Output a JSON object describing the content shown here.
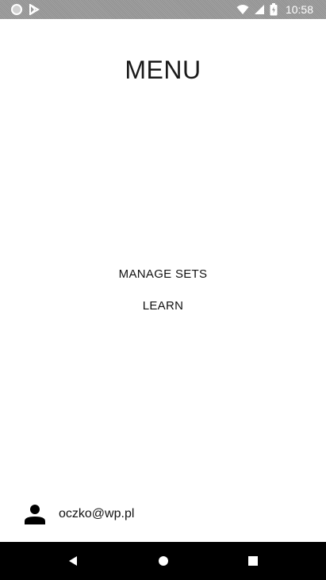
{
  "status_bar": {
    "time": "10:58",
    "icons": [
      "notification-dot-icon",
      "play-store-icon",
      "wifi-icon",
      "signal-icon",
      "battery-icon"
    ]
  },
  "title": "MENU",
  "menu": {
    "items": [
      {
        "label": "MANAGE SETS"
      },
      {
        "label": "LEARN"
      }
    ]
  },
  "account": {
    "icon": "person-icon",
    "email": "oczko@wp.pl"
  },
  "nav_bar": {
    "icons": [
      "back-icon",
      "home-icon",
      "recents-icon"
    ]
  },
  "colors": {
    "background": "#ffffff",
    "status_bar": "#9a9a9a",
    "nav_bar": "#000000",
    "text": "#111111"
  }
}
